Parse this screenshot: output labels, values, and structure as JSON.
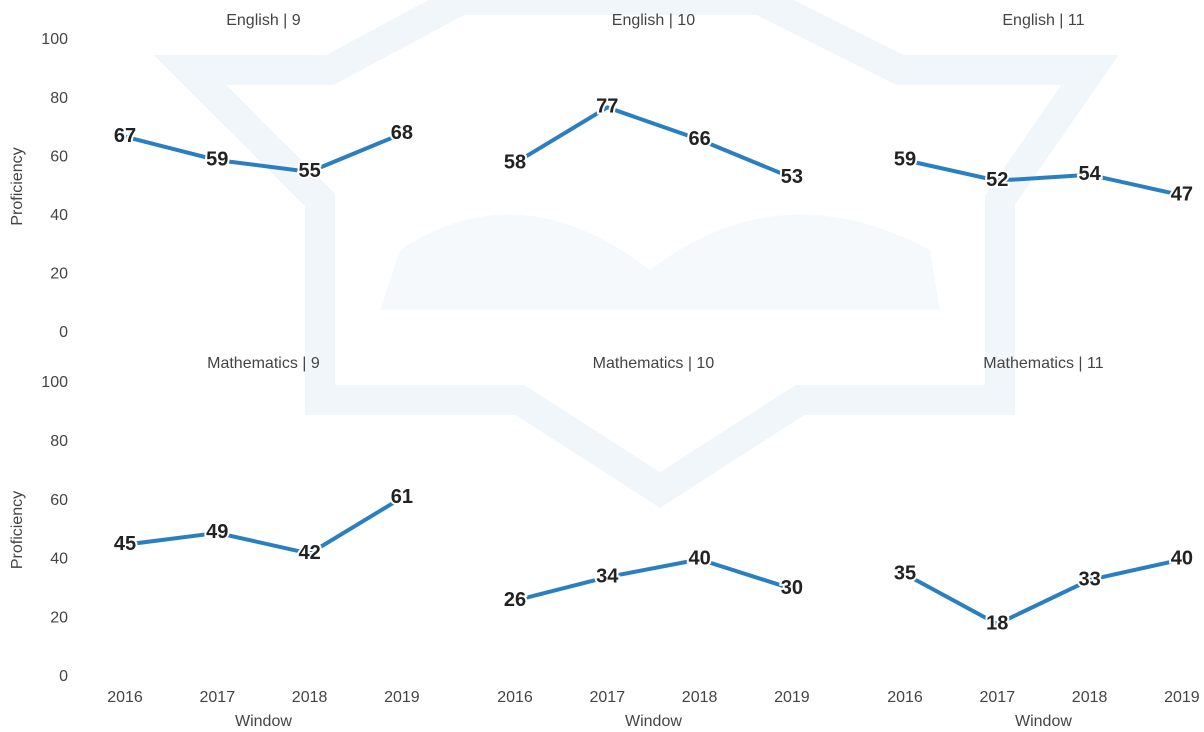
{
  "chart_data": [
    {
      "type": "line",
      "title": "English | 9",
      "categories": [
        null,
        null,
        null,
        null
      ],
      "values": [
        67,
        59,
        55,
        68
      ],
      "color": "#2a7fc0",
      "ylim": [
        0,
        100
      ],
      "yticks": [
        0,
        20,
        40,
        60,
        80,
        100
      ],
      "ylabel": "Proficiency"
    },
    {
      "type": "line",
      "title": "English | 10",
      "categories": [
        null,
        null,
        null,
        null
      ],
      "values": [
        58,
        77,
        66,
        53
      ],
      "color": "#2a7fc0",
      "ylim": [
        0,
        100
      ]
    },
    {
      "type": "line",
      "title": "English | 11",
      "categories": [
        null,
        null,
        null,
        null
      ],
      "values": [
        59,
        52,
        54,
        47
      ],
      "color": "#2a7fc0",
      "ylim": [
        0,
        100
      ]
    },
    {
      "type": "line",
      "title": "Mathematics | 9",
      "categories": [
        "2016",
        "2017",
        "2018",
        "2019"
      ],
      "values": [
        45,
        49,
        42,
        61
      ],
      "color": "#2a7fc0",
      "ylim": [
        0,
        100
      ],
      "yticks": [
        0,
        20,
        40,
        60,
        80,
        100
      ],
      "ylabel": "Proficiency",
      "xlabel": "Window"
    },
    {
      "type": "line",
      "title": "Mathematics | 10",
      "categories": [
        "2016",
        "2017",
        "2018",
        "2019"
      ],
      "values": [
        26,
        34,
        40,
        30
      ],
      "color": "#2a7fc0",
      "ylim": [
        0,
        100
      ],
      "xlabel": "Window"
    },
    {
      "type": "line",
      "title": "Mathematics | 11",
      "categories": [
        "2016",
        "2017",
        "2018",
        "2019"
      ],
      "values": [
        35,
        18,
        33,
        40
      ],
      "color": "#2a7fc0",
      "ylim": [
        0,
        100
      ],
      "xlabel": "Window"
    }
  ]
}
